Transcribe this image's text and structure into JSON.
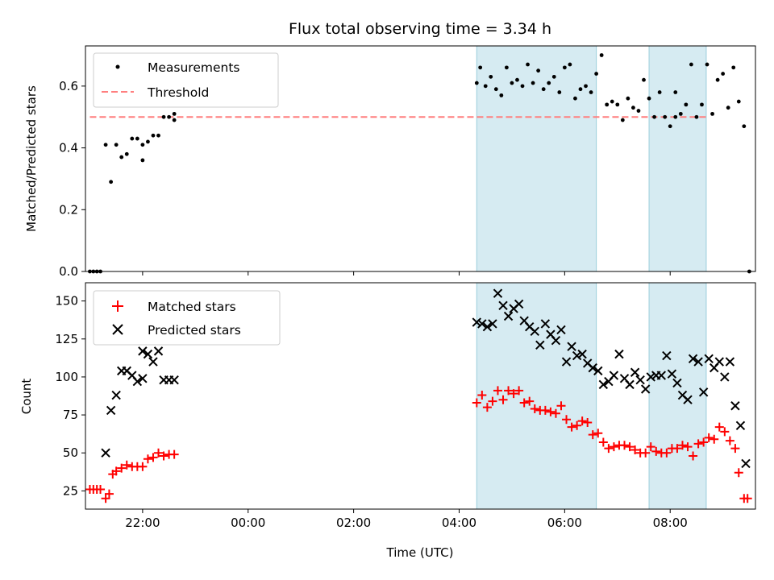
{
  "title": "Flux total observing time = 3.34 h",
  "chart_data": [
    {
      "type": "scatter",
      "ylabel": "Matched/Predicted stars",
      "xlim": [
        "20:55",
        "09:37"
      ],
      "ylim": [
        0,
        0.73
      ],
      "yticks": [
        "0.0",
        "0.2",
        "0.4",
        "0.6"
      ],
      "grid": false,
      "legend_position": "top-left",
      "shaded_intervals": [
        [
          "04:20",
          "06:36"
        ],
        [
          "07:36",
          "08:41"
        ]
      ],
      "threshold": {
        "name": "Threshold",
        "y": 0.5,
        "x_range": [
          "21:00",
          "08:41"
        ],
        "color": "#ff7f7f"
      },
      "series": [
        {
          "name": "Measurements",
          "color": "#000000",
          "points": [
            [
              "21:00",
              0.0
            ],
            [
              "21:04",
              0.0
            ],
            [
              "21:08",
              0.0
            ],
            [
              "21:12",
              0.0
            ],
            [
              "21:18",
              0.41
            ],
            [
              "21:24",
              0.29
            ],
            [
              "21:30",
              0.41
            ],
            [
              "21:36",
              0.37
            ],
            [
              "21:42",
              0.38
            ],
            [
              "21:48",
              0.43
            ],
            [
              "21:54",
              0.43
            ],
            [
              "22:00",
              0.41
            ],
            [
              "22:00",
              0.36
            ],
            [
              "22:06",
              0.42
            ],
            [
              "22:12",
              0.44
            ],
            [
              "22:18",
              0.44
            ],
            [
              "22:24",
              0.5
            ],
            [
              "22:30",
              0.5
            ],
            [
              "22:36",
              0.49
            ],
            [
              "22:36",
              0.51
            ],
            [
              "04:20",
              0.61
            ],
            [
              "04:24",
              0.66
            ],
            [
              "04:30",
              0.6
            ],
            [
              "04:36",
              0.63
            ],
            [
              "04:42",
              0.59
            ],
            [
              "04:48",
              0.57
            ],
            [
              "04:54",
              0.66
            ],
            [
              "05:00",
              0.61
            ],
            [
              "05:06",
              0.62
            ],
            [
              "05:12",
              0.6
            ],
            [
              "05:18",
              0.67
            ],
            [
              "05:24",
              0.61
            ],
            [
              "05:30",
              0.65
            ],
            [
              "05:36",
              0.59
            ],
            [
              "05:42",
              0.61
            ],
            [
              "05:48",
              0.63
            ],
            [
              "05:54",
              0.58
            ],
            [
              "06:00",
              0.66
            ],
            [
              "06:06",
              0.67
            ],
            [
              "06:12",
              0.56
            ],
            [
              "06:18",
              0.59
            ],
            [
              "06:24",
              0.6
            ],
            [
              "06:30",
              0.58
            ],
            [
              "06:36",
              0.64
            ],
            [
              "06:42",
              0.7
            ],
            [
              "06:48",
              0.54
            ],
            [
              "06:54",
              0.55
            ],
            [
              "07:00",
              0.54
            ],
            [
              "07:06",
              0.49
            ],
            [
              "07:12",
              0.56
            ],
            [
              "07:18",
              0.53
            ],
            [
              "07:24",
              0.52
            ],
            [
              "07:30",
              0.62
            ],
            [
              "07:36",
              0.56
            ],
            [
              "07:42",
              0.5
            ],
            [
              "07:48",
              0.58
            ],
            [
              "07:54",
              0.5
            ],
            [
              "08:00",
              0.47
            ],
            [
              "08:06",
              0.5
            ],
            [
              "08:06",
              0.58
            ],
            [
              "08:12",
              0.51
            ],
            [
              "08:18",
              0.54
            ],
            [
              "08:24",
              0.67
            ],
            [
              "08:30",
              0.5
            ],
            [
              "08:36",
              0.54
            ],
            [
              "08:42",
              0.67
            ],
            [
              "08:48",
              0.51
            ],
            [
              "08:54",
              0.62
            ],
            [
              "09:00",
              0.64
            ],
            [
              "09:06",
              0.53
            ],
            [
              "09:12",
              0.66
            ],
            [
              "09:18",
              0.55
            ],
            [
              "09:24",
              0.47
            ],
            [
              "09:30",
              0.0
            ]
          ]
        }
      ]
    },
    {
      "type": "scatter",
      "ylabel": "Count",
      "xlabel": "Time (UTC)",
      "xlim": [
        "20:55",
        "09:37"
      ],
      "ylim": [
        13,
        162
      ],
      "yticks": [
        "25",
        "50",
        "75",
        "100",
        "125",
        "150"
      ],
      "xticks": [
        "22:00",
        "00:00",
        "02:00",
        "04:00",
        "06:00",
        "08:00"
      ],
      "grid": false,
      "legend_position": "top-left",
      "shaded_intervals": [
        [
          "04:20",
          "06:36"
        ],
        [
          "07:36",
          "08:41"
        ]
      ],
      "series": [
        {
          "name": "Matched stars",
          "marker": "+",
          "color": "#ff0000",
          "points": [
            [
              "21:00",
              26
            ],
            [
              "21:04",
              26
            ],
            [
              "21:08",
              26
            ],
            [
              "21:12",
              26
            ],
            [
              "21:18",
              20
            ],
            [
              "21:22",
              23
            ],
            [
              "21:26",
              36
            ],
            [
              "21:30",
              38
            ],
            [
              "21:36",
              40
            ],
            [
              "21:42",
              42
            ],
            [
              "21:48",
              41
            ],
            [
              "21:54",
              41
            ],
            [
              "22:00",
              41
            ],
            [
              "22:06",
              46
            ],
            [
              "22:12",
              47
            ],
            [
              "22:18",
              50
            ],
            [
              "22:24",
              48
            ],
            [
              "22:30",
              49
            ],
            [
              "22:36",
              49
            ],
            [
              "04:20",
              83
            ],
            [
              "04:26",
              88
            ],
            [
              "04:32",
              80
            ],
            [
              "04:38",
              84
            ],
            [
              "04:44",
              91
            ],
            [
              "04:50",
              85
            ],
            [
              "04:56",
              91
            ],
            [
              "05:02",
              89
            ],
            [
              "05:08",
              91
            ],
            [
              "05:14",
              83
            ],
            [
              "05:20",
              84
            ],
            [
              "05:26",
              79
            ],
            [
              "05:32",
              78
            ],
            [
              "05:38",
              78
            ],
            [
              "05:44",
              77
            ],
            [
              "05:50",
              76
            ],
            [
              "05:56",
              81
            ],
            [
              "06:02",
              72
            ],
            [
              "06:08",
              67
            ],
            [
              "06:14",
              68
            ],
            [
              "06:20",
              71
            ],
            [
              "06:26",
              70
            ],
            [
              "06:32",
              62
            ],
            [
              "06:38",
              63
            ],
            [
              "06:44",
              57
            ],
            [
              "06:50",
              53
            ],
            [
              "06:56",
              54
            ],
            [
              "07:02",
              55
            ],
            [
              "07:08",
              55
            ],
            [
              "07:14",
              54
            ],
            [
              "07:20",
              52
            ],
            [
              "07:26",
              50
            ],
            [
              "07:32",
              50
            ],
            [
              "07:38",
              54
            ],
            [
              "07:44",
              51
            ],
            [
              "07:50",
              50
            ],
            [
              "07:56",
              50
            ],
            [
              "08:02",
              53
            ],
            [
              "08:08",
              53
            ],
            [
              "08:14",
              55
            ],
            [
              "08:20",
              54
            ],
            [
              "08:26",
              48
            ],
            [
              "08:32",
              56
            ],
            [
              "08:38",
              57
            ],
            [
              "08:44",
              60
            ],
            [
              "08:50",
              59
            ],
            [
              "08:56",
              67
            ],
            [
              "09:02",
              64
            ],
            [
              "09:08",
              58
            ],
            [
              "09:14",
              53
            ],
            [
              "09:18",
              37
            ],
            [
              "09:24",
              20
            ],
            [
              "09:28",
              20
            ]
          ]
        },
        {
          "name": "Predicted stars",
          "marker": "x",
          "color": "#000000",
          "points": [
            [
              "21:18",
              50
            ],
            [
              "21:24",
              78
            ],
            [
              "21:30",
              88
            ],
            [
              "21:36",
              104
            ],
            [
              "21:42",
              104
            ],
            [
              "21:48",
              101
            ],
            [
              "21:54",
              97
            ],
            [
              "22:00",
              99
            ],
            [
              "22:00",
              117
            ],
            [
              "22:06",
              115
            ],
            [
              "22:12",
              110
            ],
            [
              "22:18",
              117
            ],
            [
              "22:24",
              98
            ],
            [
              "22:30",
              98
            ],
            [
              "22:36",
              98
            ],
            [
              "04:20",
              136
            ],
            [
              "04:26",
              135
            ],
            [
              "04:32",
              133
            ],
            [
              "04:38",
              135
            ],
            [
              "04:44",
              155
            ],
            [
              "04:50",
              147
            ],
            [
              "04:56",
              140
            ],
            [
              "05:02",
              145
            ],
            [
              "05:08",
              148
            ],
            [
              "05:14",
              137
            ],
            [
              "05:20",
              133
            ],
            [
              "05:26",
              130
            ],
            [
              "05:32",
              121
            ],
            [
              "05:38",
              135
            ],
            [
              "05:44",
              128
            ],
            [
              "05:50",
              124
            ],
            [
              "05:56",
              131
            ],
            [
              "06:02",
              110
            ],
            [
              "06:08",
              120
            ],
            [
              "06:14",
              114
            ],
            [
              "06:20",
              115
            ],
            [
              "06:26",
              109
            ],
            [
              "06:32",
              106
            ],
            [
              "06:38",
              104
            ],
            [
              "06:44",
              95
            ],
            [
              "06:50",
              97
            ],
            [
              "06:56",
              101
            ],
            [
              "07:02",
              115
            ],
            [
              "07:08",
              99
            ],
            [
              "07:14",
              95
            ],
            [
              "07:20",
              103
            ],
            [
              "07:26",
              98
            ],
            [
              "07:32",
              92
            ],
            [
              "07:38",
              100
            ],
            [
              "07:44",
              101
            ],
            [
              "07:50",
              101
            ],
            [
              "07:56",
              114
            ],
            [
              "08:02",
              102
            ],
            [
              "08:08",
              96
            ],
            [
              "08:14",
              88
            ],
            [
              "08:20",
              85
            ],
            [
              "08:26",
              112
            ],
            [
              "08:32",
              110
            ],
            [
              "08:38",
              90
            ],
            [
              "08:44",
              112
            ],
            [
              "08:50",
              106
            ],
            [
              "08:56",
              110
            ],
            [
              "09:02",
              100
            ],
            [
              "09:08",
              110
            ],
            [
              "09:14",
              81
            ],
            [
              "09:20",
              68
            ],
            [
              "09:26",
              43
            ]
          ]
        }
      ]
    }
  ]
}
